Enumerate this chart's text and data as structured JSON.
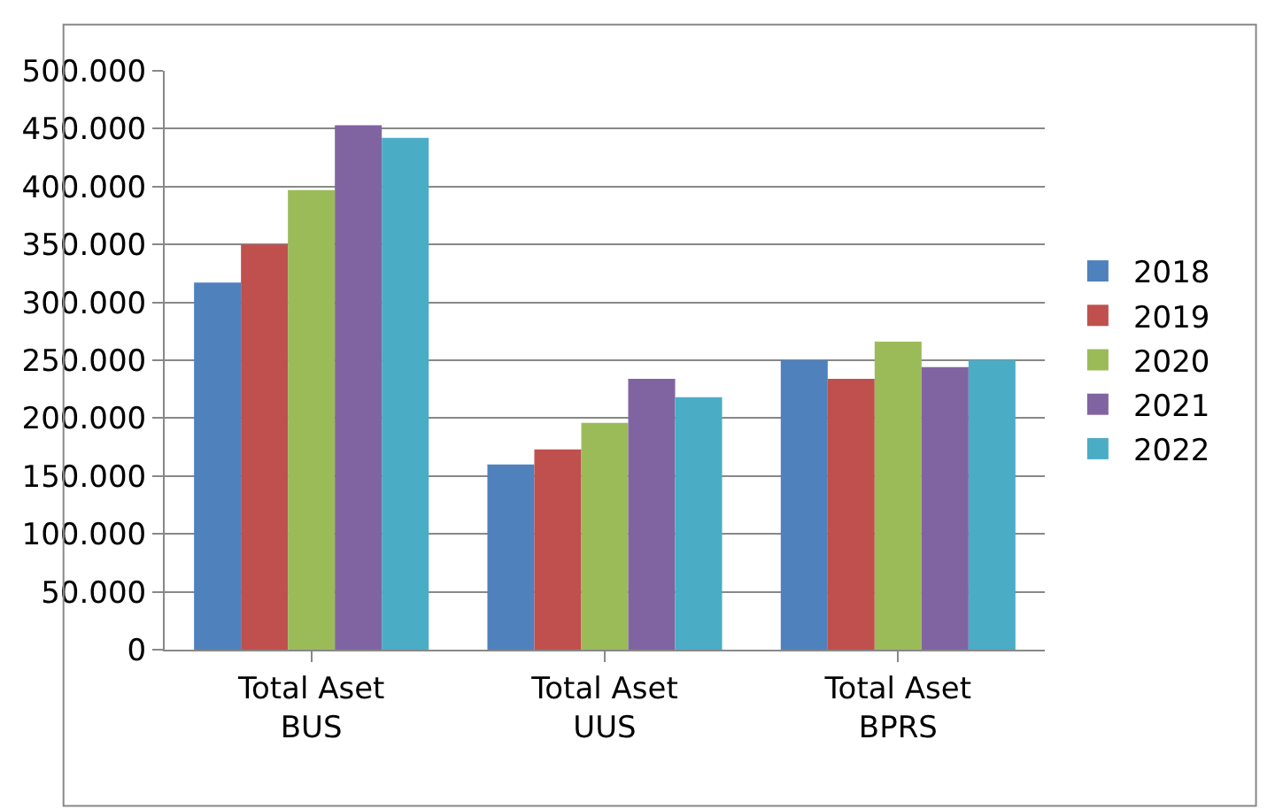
{
  "chart_data": {
    "type": "bar",
    "categories": [
      "Total Aset\nBUS",
      "Total Aset\nUUS",
      "Total Aset\nBPRS"
    ],
    "series": [
      {
        "name": "2018",
        "color": "#4f81bd",
        "values": [
          317000,
          160000,
          250000
        ]
      },
      {
        "name": "2019",
        "color": "#c0504d",
        "values": [
          350000,
          173000,
          234000
        ]
      },
      {
        "name": "2020",
        "color": "#9bbb59",
        "values": [
          397000,
          196000,
          266000
        ]
      },
      {
        "name": "2021",
        "color": "#8064a2",
        "values": [
          453000,
          234000,
          244000
        ]
      },
      {
        "name": "2022",
        "color": "#4bacc6",
        "values": [
          442000,
          218000,
          250000
        ]
      }
    ],
    "ylim": [
      0,
      500000
    ],
    "yticks": [
      {
        "value": 0,
        "label": "0"
      },
      {
        "value": 50000,
        "label": "50.000"
      },
      {
        "value": 100000,
        "label": "100.000"
      },
      {
        "value": 150000,
        "label": "150.000"
      },
      {
        "value": 200000,
        "label": "200.000"
      },
      {
        "value": 250000,
        "label": "250.000"
      },
      {
        "value": 300000,
        "label": "300.000"
      },
      {
        "value": 350000,
        "label": "350.000"
      },
      {
        "value": 400000,
        "label": "400.000"
      },
      {
        "value": 450000,
        "label": "450.000"
      },
      {
        "value": 500000,
        "label": "500.000"
      }
    ],
    "grid": "y",
    "legend": "right"
  }
}
